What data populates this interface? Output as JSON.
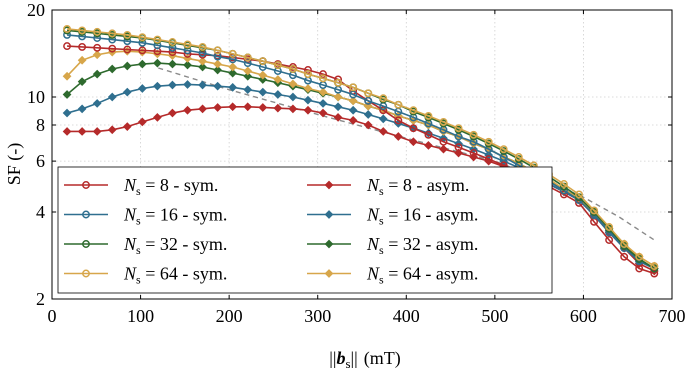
{
  "chart_data": {
    "type": "line",
    "title": "",
    "xlabel": "||b_s|| (mT)",
    "ylabel": "SF (-)",
    "xlim": [
      0,
      700
    ],
    "ylim": [
      2,
      20
    ],
    "yscale": "log",
    "x_ticks": [
      0,
      100,
      200,
      300,
      400,
      500,
      600,
      700
    ],
    "y_ticks": [
      2,
      4,
      6,
      8,
      10,
      20
    ],
    "grid": true,
    "legend_position": "lower-left",
    "colors": {
      "red": "#b52a2a",
      "blue": "#2f6f8f",
      "green": "#2e6a2e",
      "gold": "#d7a64a",
      "reference": "#8a8a8a"
    },
    "x": [
      17,
      34,
      51,
      68,
      85,
      102,
      119,
      136,
      153,
      170,
      187,
      204,
      221,
      238,
      255,
      272,
      289,
      306,
      323,
      340,
      357,
      374,
      391,
      408,
      425,
      442,
      459,
      476,
      493,
      510,
      527,
      544,
      561,
      578,
      595,
      612,
      629,
      646,
      663,
      680
    ],
    "series": [
      {
        "name": "Ns = 8 - sym.",
        "color": "red",
        "marker": "circle",
        "values": [
          15.0,
          14.9,
          14.8,
          14.7,
          14.6,
          14.5,
          14.4,
          14.3,
          14.1,
          14.0,
          13.9,
          13.7,
          13.5,
          13.3,
          13.0,
          12.7,
          12.4,
          12.0,
          11.5,
          10.5,
          9.7,
          9.0,
          8.3,
          7.8,
          7.4,
          7.0,
          6.7,
          6.4,
          6.1,
          5.8,
          5.5,
          5.2,
          4.9,
          4.6,
          4.3,
          3.7,
          3.2,
          2.8,
          2.55,
          2.45
        ]
      },
      {
        "name": "Ns = 8 - asym.",
        "color": "red",
        "marker": "diamond",
        "values": [
          7.6,
          7.6,
          7.6,
          7.7,
          7.9,
          8.2,
          8.5,
          8.8,
          9.0,
          9.1,
          9.2,
          9.25,
          9.25,
          9.2,
          9.15,
          9.1,
          9.0,
          8.8,
          8.5,
          8.3,
          8.0,
          7.6,
          7.3,
          7.0,
          6.8,
          6.6,
          6.4,
          6.2,
          6.0,
          5.75,
          5.5,
          5.25,
          5.0,
          4.7,
          4.4,
          3.9,
          3.4,
          3.0,
          2.65,
          2.5
        ]
      },
      {
        "name": "Ns = 16 - sym.",
        "color": "blue",
        "marker": "circle",
        "values": [
          16.4,
          16.2,
          16.0,
          15.8,
          15.6,
          15.4,
          15.1,
          14.8,
          14.5,
          14.2,
          13.8,
          13.5,
          13.1,
          12.7,
          12.3,
          11.9,
          11.4,
          11.0,
          10.6,
          10.2,
          9.7,
          9.3,
          8.9,
          8.5,
          8.1,
          7.7,
          7.3,
          7.0,
          6.6,
          6.2,
          5.8,
          5.45,
          5.1,
          4.75,
          4.4,
          3.9,
          3.4,
          3.0,
          2.7,
          2.55
        ]
      },
      {
        "name": "Ns = 16 - asym.",
        "color": "blue",
        "marker": "diamond",
        "values": [
          8.8,
          9.1,
          9.5,
          10.0,
          10.4,
          10.7,
          10.9,
          11.0,
          11.05,
          11.0,
          10.9,
          10.8,
          10.6,
          10.4,
          10.2,
          10.0,
          9.75,
          9.5,
          9.25,
          9.0,
          8.7,
          8.4,
          8.1,
          7.8,
          7.5,
          7.2,
          6.9,
          6.6,
          6.3,
          6.0,
          5.7,
          5.35,
          5.0,
          4.7,
          4.4,
          3.95,
          3.45,
          3.05,
          2.7,
          2.55
        ]
      },
      {
        "name": "Ns = 32 - sym.",
        "color": "green",
        "marker": "circle",
        "values": [
          17.0,
          16.8,
          16.6,
          16.4,
          16.2,
          16.0,
          15.7,
          15.4,
          15.1,
          14.8,
          14.5,
          14.1,
          13.7,
          13.3,
          12.9,
          12.5,
          12.0,
          11.6,
          11.2,
          10.8,
          10.3,
          9.8,
          9.4,
          8.9,
          8.5,
          8.1,
          7.7,
          7.3,
          6.9,
          6.5,
          6.1,
          5.7,
          5.3,
          4.9,
          4.5,
          4.0,
          3.5,
          3.05,
          2.75,
          2.55
        ]
      },
      {
        "name": "Ns = 32 - asym.",
        "color": "green",
        "marker": "diamond",
        "values": [
          10.2,
          11.3,
          12.0,
          12.5,
          12.8,
          13.0,
          13.1,
          13.0,
          12.9,
          12.7,
          12.4,
          12.1,
          11.8,
          11.5,
          11.2,
          10.9,
          10.6,
          10.3,
          10.0,
          9.7,
          9.3,
          9.0,
          8.6,
          8.3,
          8.0,
          7.6,
          7.3,
          6.9,
          6.6,
          6.2,
          5.9,
          5.5,
          5.15,
          4.8,
          4.45,
          4.0,
          3.5,
          3.1,
          2.75,
          2.55
        ]
      },
      {
        "name": "Ns = 64 - sym.",
        "color": "gold",
        "marker": "circle",
        "values": [
          17.2,
          17.0,
          16.8,
          16.6,
          16.4,
          16.1,
          15.8,
          15.5,
          15.2,
          14.9,
          14.5,
          14.1,
          13.7,
          13.3,
          12.9,
          12.5,
          12.0,
          11.6,
          11.2,
          10.8,
          10.3,
          9.9,
          9.4,
          9.0,
          8.6,
          8.2,
          7.8,
          7.4,
          7.0,
          6.6,
          6.2,
          5.8,
          5.4,
          5.0,
          4.6,
          4.05,
          3.55,
          3.1,
          2.8,
          2.6
        ]
      },
      {
        "name": "Ns = 64 - asym.",
        "color": "gold",
        "marker": "diamond",
        "values": [
          11.8,
          13.4,
          14.0,
          14.3,
          14.4,
          14.3,
          14.1,
          13.9,
          13.6,
          13.3,
          13.0,
          12.7,
          12.3,
          11.9,
          11.5,
          11.1,
          10.7,
          10.4,
          10.0,
          9.7,
          9.3,
          9.0,
          8.6,
          8.3,
          8.0,
          7.6,
          7.3,
          6.9,
          6.6,
          6.2,
          5.9,
          5.5,
          5.2,
          4.8,
          4.45,
          4.0,
          3.5,
          3.1,
          2.8,
          2.6
        ]
      },
      {
        "name": "",
        "color": "reference",
        "marker": "none",
        "dashed": true,
        "x": [
          120,
          200,
          300,
          400,
          500,
          560,
          600,
          640,
          680
        ],
        "values": [
          12.6,
          10.6,
          8.7,
          7.2,
          6.0,
          5.1,
          4.5,
          3.85,
          3.2
        ]
      }
    ],
    "legend": [
      {
        "prefix": "N",
        "sub": "s",
        "text": " = 8 - sym.",
        "color": "red",
        "marker": "circle"
      },
      {
        "prefix": "N",
        "sub": "s",
        "text": " = 8 - asym.",
        "color": "red",
        "marker": "diamond"
      },
      {
        "prefix": "N",
        "sub": "s",
        "text": " = 16 - sym.",
        "color": "blue",
        "marker": "circle"
      },
      {
        "prefix": "N",
        "sub": "s",
        "text": " = 16 - asym.",
        "color": "blue",
        "marker": "diamond"
      },
      {
        "prefix": "N",
        "sub": "s",
        "text": " = 32 - sym.",
        "color": "green",
        "marker": "circle"
      },
      {
        "prefix": "N",
        "sub": "s",
        "text": " = 32 - asym.",
        "color": "green",
        "marker": "diamond"
      },
      {
        "prefix": "N",
        "sub": "s",
        "text": " = 64 - sym.",
        "color": "gold",
        "marker": "circle"
      },
      {
        "prefix": "N",
        "sub": "s",
        "text": " = 64 - asym.",
        "color": "gold",
        "marker": "diamond"
      }
    ]
  }
}
